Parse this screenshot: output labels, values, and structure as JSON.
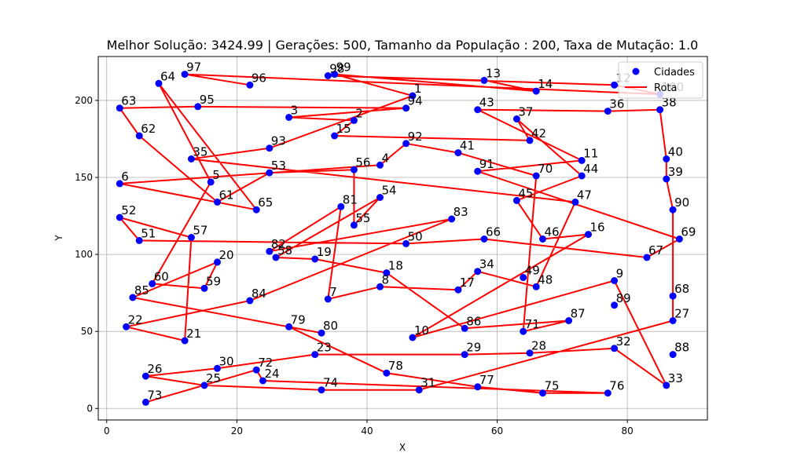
{
  "chart_data": {
    "type": "scatter",
    "title": "Melhor Solução: 3424.99 | Gerações: 500, Tamanho da População : 200, Taxa de Mutação: 1.0",
    "xlabel": "X",
    "ylabel": "Y",
    "xlim": [
      -1.3,
      92.3
    ],
    "ylim": [
      -7.5,
      228.5
    ],
    "xticks": [
      0,
      20,
      40,
      60,
      80
    ],
    "yticks": [
      0,
      50,
      100,
      150,
      200
    ],
    "grid": true,
    "legend": {
      "placement": "top-right",
      "entries": [
        {
          "label": "Cidades",
          "kind": "marker",
          "color": "#0000ff"
        },
        {
          "label": "Rota",
          "kind": "line",
          "color": "#ff0000"
        }
      ]
    },
    "colors": {
      "cities": "#0000ff",
      "route": "#ff0000"
    },
    "cities": [
      {
        "id": "1",
        "x": 47,
        "y": 203
      },
      {
        "id": "2",
        "x": 38,
        "y": 187
      },
      {
        "id": "3",
        "x": 28,
        "y": 189
      },
      {
        "id": "4",
        "x": 42,
        "y": 158
      },
      {
        "id": "5",
        "x": 16,
        "y": 147
      },
      {
        "id": "6",
        "x": 2,
        "y": 146
      },
      {
        "id": "7",
        "x": 34,
        "y": 71
      },
      {
        "id": "8",
        "x": 42,
        "y": 79
      },
      {
        "id": "9",
        "x": 78,
        "y": 83
      },
      {
        "id": "10",
        "x": 47,
        "y": 46
      },
      {
        "id": "11",
        "x": 73,
        "y": 161
      },
      {
        "id": "12",
        "x": 78,
        "y": 210
      },
      {
        "id": "13",
        "x": 58,
        "y": 213
      },
      {
        "id": "14",
        "x": 66,
        "y": 206
      },
      {
        "id": "15",
        "x": 35,
        "y": 177
      },
      {
        "id": "16",
        "x": 74,
        "y": 113
      },
      {
        "id": "17",
        "x": 54,
        "y": 77
      },
      {
        "id": "18",
        "x": 43,
        "y": 88
      },
      {
        "id": "19",
        "x": 32,
        "y": 97
      },
      {
        "id": "20",
        "x": 17,
        "y": 95
      },
      {
        "id": "21",
        "x": 12,
        "y": 44
      },
      {
        "id": "22",
        "x": 3,
        "y": 53
      },
      {
        "id": "23",
        "x": 32,
        "y": 35
      },
      {
        "id": "24",
        "x": 24,
        "y": 18
      },
      {
        "id": "25",
        "x": 15,
        "y": 15
      },
      {
        "id": "26",
        "x": 6,
        "y": 21
      },
      {
        "id": "27",
        "x": 87,
        "y": 57
      },
      {
        "id": "28",
        "x": 65,
        "y": 36
      },
      {
        "id": "29",
        "x": 55,
        "y": 35
      },
      {
        "id": "30",
        "x": 17,
        "y": 26
      },
      {
        "id": "31",
        "x": 48,
        "y": 12
      },
      {
        "id": "32",
        "x": 78,
        "y": 39
      },
      {
        "id": "33",
        "x": 86,
        "y": 15
      },
      {
        "id": "34",
        "x": 57,
        "y": 89
      },
      {
        "id": "35",
        "x": 13,
        "y": 162
      },
      {
        "id": "36",
        "x": 77,
        "y": 193
      },
      {
        "id": "37",
        "x": 63,
        "y": 188
      },
      {
        "id": "38",
        "x": 85,
        "y": 194
      },
      {
        "id": "39",
        "x": 86,
        "y": 149
      },
      {
        "id": "40",
        "x": 86,
        "y": 162
      },
      {
        "id": "41",
        "x": 54,
        "y": 166
      },
      {
        "id": "42",
        "x": 65,
        "y": 174
      },
      {
        "id": "43",
        "x": 57,
        "y": 194
      },
      {
        "id": "44",
        "x": 73,
        "y": 151
      },
      {
        "id": "45",
        "x": 63,
        "y": 135
      },
      {
        "id": "46",
        "x": 67,
        "y": 110
      },
      {
        "id": "47",
        "x": 72,
        "y": 134
      },
      {
        "id": "48",
        "x": 66,
        "y": 79
      },
      {
        "id": "49",
        "x": 64,
        "y": 85
      },
      {
        "id": "50",
        "x": 46,
        "y": 107
      },
      {
        "id": "51",
        "x": 5,
        "y": 109
      },
      {
        "id": "52",
        "x": 2,
        "y": 124
      },
      {
        "id": "53",
        "x": 25,
        "y": 153
      },
      {
        "id": "54",
        "x": 42,
        "y": 137
      },
      {
        "id": "55",
        "x": 38,
        "y": 119
      },
      {
        "id": "56",
        "x": 38,
        "y": 155
      },
      {
        "id": "57",
        "x": 13,
        "y": 111
      },
      {
        "id": "58",
        "x": 26,
        "y": 98
      },
      {
        "id": "59",
        "x": 15,
        "y": 78
      },
      {
        "id": "60",
        "x": 7,
        "y": 81
      },
      {
        "id": "61",
        "x": 17,
        "y": 134
      },
      {
        "id": "62",
        "x": 5,
        "y": 177
      },
      {
        "id": "63",
        "x": 2,
        "y": 195
      },
      {
        "id": "64",
        "x": 8,
        "y": 211
      },
      {
        "id": "65",
        "x": 23,
        "y": 129
      },
      {
        "id": "66",
        "x": 58,
        "y": 110
      },
      {
        "id": "67",
        "x": 83,
        "y": 98
      },
      {
        "id": "68",
        "x": 87,
        "y": 73
      },
      {
        "id": "69",
        "x": 88,
        "y": 110
      },
      {
        "id": "70",
        "x": 66,
        "y": 151
      },
      {
        "id": "71",
        "x": 64,
        "y": 50
      },
      {
        "id": "72",
        "x": 23,
        "y": 25
      },
      {
        "id": "73",
        "x": 6,
        "y": 4
      },
      {
        "id": "74",
        "x": 33,
        "y": 12
      },
      {
        "id": "75",
        "x": 67,
        "y": 10
      },
      {
        "id": "76",
        "x": 77,
        "y": 10
      },
      {
        "id": "77",
        "x": 57,
        "y": 14
      },
      {
        "id": "78",
        "x": 43,
        "y": 23
      },
      {
        "id": "79",
        "x": 28,
        "y": 53
      },
      {
        "id": "80",
        "x": 33,
        "y": 49
      },
      {
        "id": "81",
        "x": 36,
        "y": 131
      },
      {
        "id": "82",
        "x": 25,
        "y": 102
      },
      {
        "id": "83",
        "x": 53,
        "y": 123
      },
      {
        "id": "84",
        "x": 22,
        "y": 70
      },
      {
        "id": "85",
        "x": 4,
        "y": 72
      },
      {
        "id": "86",
        "x": 55,
        "y": 52
      },
      {
        "id": "87",
        "x": 71,
        "y": 57
      },
      {
        "id": "88",
        "x": 87,
        "y": 35
      },
      {
        "id": "89",
        "x": 78,
        "y": 67
      },
      {
        "id": "90",
        "x": 87,
        "y": 129
      },
      {
        "id": "91",
        "x": 57,
        "y": 154
      },
      {
        "id": "92",
        "x": 46,
        "y": 172
      },
      {
        "id": "93",
        "x": 25,
        "y": 169
      },
      {
        "id": "94",
        "x": 46,
        "y": 195
      },
      {
        "id": "95",
        "x": 14,
        "y": 196
      },
      {
        "id": "96",
        "x": 22,
        "y": 210
      },
      {
        "id": "97",
        "x": 12,
        "y": 217
      },
      {
        "id": "98",
        "x": 34,
        "y": 216
      },
      {
        "id": "99",
        "x": 35,
        "y": 217
      },
      {
        "id": "100",
        "x": 85,
        "y": 204
      }
    ],
    "route": [
      "96",
      "97",
      "100",
      "12",
      "98",
      "13",
      "14",
      "99",
      "1",
      "93",
      "35",
      "47",
      "48",
      "34",
      "17",
      "8",
      "7",
      "81",
      "82",
      "83",
      "84",
      "22",
      "21",
      "57",
      "52",
      "51",
      "50",
      "66",
      "67",
      "69",
      "91",
      "11",
      "43",
      "36",
      "38",
      "40",
      "39",
      "90",
      "68",
      "27",
      "31",
      "74",
      "25",
      "26",
      "30",
      "23",
      "29",
      "28",
      "32",
      "33",
      "9",
      "10",
      "16",
      "46",
      "45",
      "44",
      "37",
      "42",
      "15",
      "2",
      "3",
      "94",
      "95",
      "63",
      "62",
      "61",
      "53",
      "56",
      "55",
      "54",
      "58",
      "19",
      "18",
      "86",
      "87",
      "71",
      "70",
      "41",
      "92",
      "4",
      "6",
      "65",
      "64",
      "5",
      "60",
      "59",
      "20",
      "85",
      "80",
      "79",
      "78",
      "77",
      "75",
      "76",
      "24",
      "72",
      "73"
    ]
  }
}
